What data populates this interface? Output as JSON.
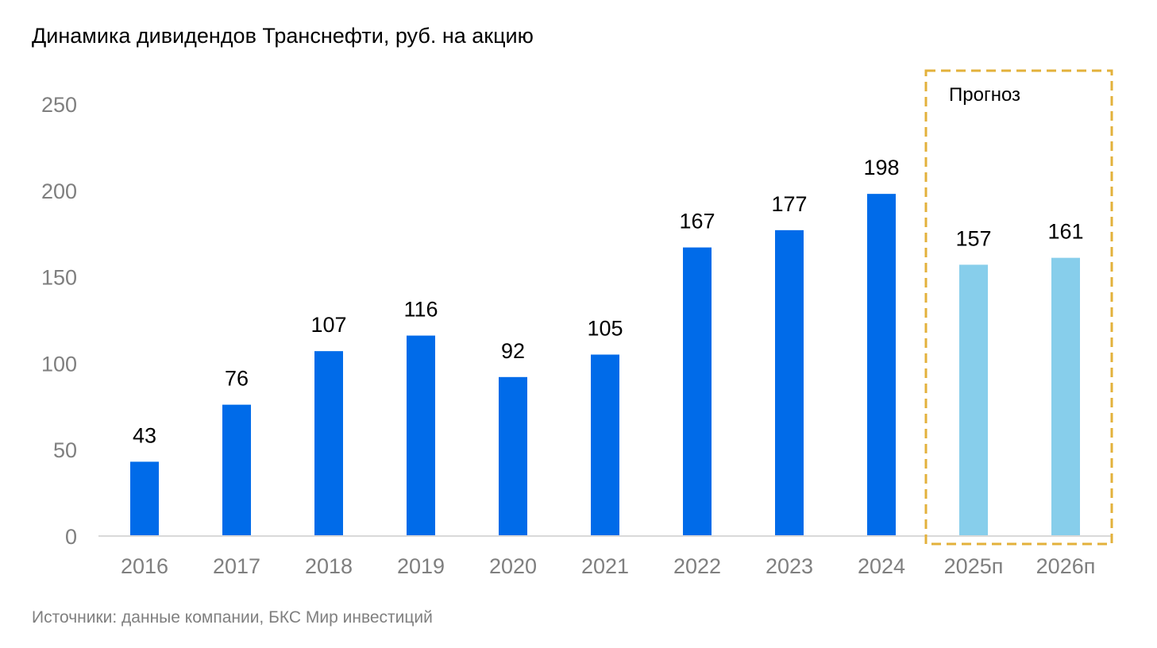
{
  "chart_data": {
    "type": "bar",
    "title": "Динамика дивидендов Транснефти, руб. на акцию",
    "source": "Источники: данные компании, БКС Мир инвестиций",
    "categories": [
      "2016",
      "2017",
      "2018",
      "2019",
      "2020",
      "2021",
      "2022",
      "2023",
      "2024",
      "2025п",
      "2026п"
    ],
    "values": [
      43,
      76,
      107,
      116,
      92,
      105,
      167,
      177,
      198,
      157,
      161
    ],
    "data_labels": [
      "43",
      "76",
      "107",
      "116",
      "92",
      "105",
      "167",
      "177",
      "198",
      "157",
      "161"
    ],
    "forecast": [
      false,
      false,
      false,
      false,
      false,
      false,
      false,
      false,
      false,
      true,
      true
    ],
    "forecast_label": "Прогноз",
    "yticks": [
      0,
      50,
      100,
      150,
      200,
      250
    ],
    "ylim": [
      0,
      250
    ],
    "grid": false,
    "legend": "none",
    "colors": {
      "actual": "#006be9",
      "forecast": "#87ceeb",
      "forecast_box": "#e3b13b",
      "axis": "#d9d9d9"
    }
  }
}
